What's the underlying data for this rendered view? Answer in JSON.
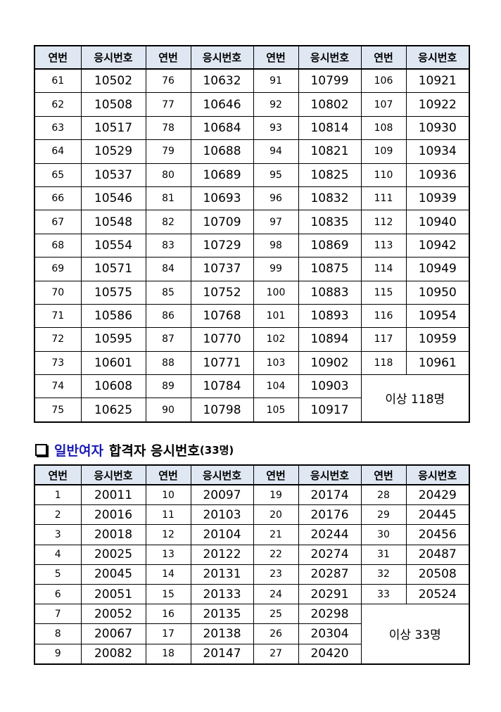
{
  "table1": {
    "headers": [
      "연번",
      "응시번호",
      "연번",
      "응시번호",
      "연번",
      "응시번호",
      "연번",
      "응시번호"
    ],
    "rows": [
      [
        "61",
        "10502",
        "76",
        "10632",
        "91",
        "10799",
        "106",
        "10921"
      ],
      [
        "62",
        "10508",
        "77",
        "10646",
        "92",
        "10802",
        "107",
        "10922"
      ],
      [
        "63",
        "10517",
        "78",
        "10684",
        "93",
        "10814",
        "108",
        "10930"
      ],
      [
        "64",
        "10529",
        "79",
        "10688",
        "94",
        "10821",
        "109",
        "10934"
      ],
      [
        "65",
        "10537",
        "80",
        "10689",
        "95",
        "10825",
        "110",
        "10936"
      ],
      [
        "66",
        "10546",
        "81",
        "10693",
        "96",
        "10832",
        "111",
        "10939"
      ],
      [
        "67",
        "10548",
        "82",
        "10709",
        "97",
        "10835",
        "112",
        "10940"
      ],
      [
        "68",
        "10554",
        "83",
        "10729",
        "98",
        "10869",
        "113",
        "10942"
      ],
      [
        "69",
        "10571",
        "84",
        "10737",
        "99",
        "10875",
        "114",
        "10949"
      ],
      [
        "70",
        "10575",
        "85",
        "10752",
        "100",
        "10883",
        "115",
        "10950"
      ],
      [
        "71",
        "10586",
        "86",
        "10768",
        "101",
        "10893",
        "116",
        "10954"
      ],
      [
        "72",
        "10595",
        "87",
        "10770",
        "102",
        "10894",
        "117",
        "10959"
      ],
      [
        "73",
        "10601",
        "88",
        "10771",
        "103",
        "10902",
        "118",
        "10961"
      ],
      [
        "74",
        "10608",
        "89",
        "10784",
        "104",
        "10903"
      ],
      [
        "75",
        "10625",
        "90",
        "10798",
        "105",
        "10917"
      ]
    ],
    "summary": "이상 118명"
  },
  "section2": {
    "highlight": "일반여자",
    "title": "합격자 응시번호",
    "count": "(33명)"
  },
  "table2": {
    "headers": [
      "연번",
      "응시번호",
      "연번",
      "응시번호",
      "연번",
      "응시번호",
      "연번",
      "응시번호"
    ],
    "rows": [
      [
        "1",
        "20011",
        "10",
        "20097",
        "19",
        "20174",
        "28",
        "20429"
      ],
      [
        "2",
        "20016",
        "11",
        "20103",
        "20",
        "20176",
        "29",
        "20445"
      ],
      [
        "3",
        "20018",
        "12",
        "20104",
        "21",
        "20244",
        "30",
        "20456"
      ],
      [
        "4",
        "20025",
        "13",
        "20122",
        "22",
        "20274",
        "31",
        "20487"
      ],
      [
        "5",
        "20045",
        "14",
        "20131",
        "23",
        "20287",
        "32",
        "20508"
      ],
      [
        "6",
        "20051",
        "15",
        "20133",
        "24",
        "20291",
        "33",
        "20524"
      ],
      [
        "7",
        "20052",
        "16",
        "20135",
        "25",
        "20298"
      ],
      [
        "8",
        "20067",
        "17",
        "20138",
        "26",
        "20304"
      ],
      [
        "9",
        "20082",
        "18",
        "20147",
        "27",
        "20420"
      ]
    ],
    "summary": "이상 33명"
  }
}
